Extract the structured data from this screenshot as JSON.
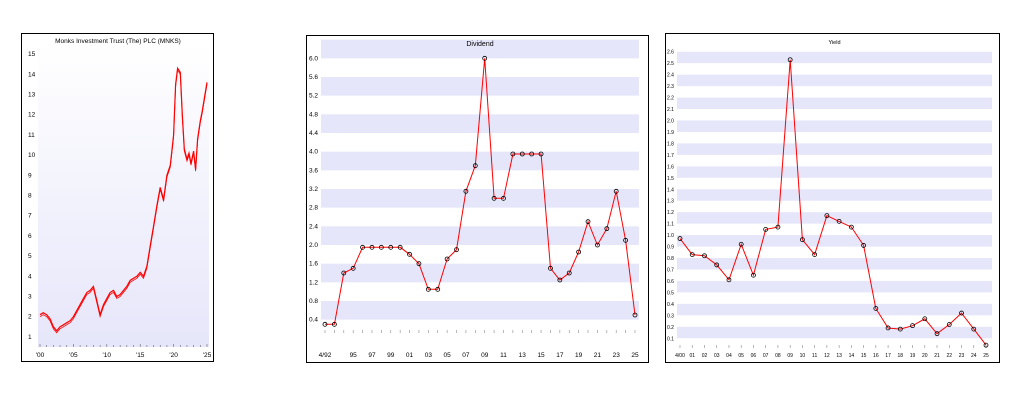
{
  "colors": {
    "line": "#ff0000",
    "band": "#e6e6fa",
    "axis": "#000000",
    "marker_stroke": "#000000"
  },
  "chart_data": [
    {
      "type": "line",
      "title": "Monks Investment Trust (The) PLC (MNKS)",
      "xlabel": "",
      "ylabel": "",
      "x_tick_labels": [
        "'00",
        "'05",
        "'10",
        "'15",
        "'20",
        "'25"
      ],
      "x_ticks": [
        2000,
        2005,
        2010,
        2015,
        2020,
        2025
      ],
      "y_tick_labels": [
        "1",
        "2",
        "3",
        "4",
        "5",
        "6",
        "7",
        "8",
        "9",
        "10",
        "11",
        "12",
        "13",
        "14",
        "15"
      ],
      "ylim": [
        0.5,
        15.5
      ],
      "xlim": [
        1999.7,
        2025.3
      ],
      "background": "vertical gradient white to lavender",
      "grid": false,
      "series": [
        {
          "x": [
            2000.0,
            2000.5,
            2001.0,
            2001.5,
            2002.0,
            2002.5,
            2003.0,
            2003.5,
            2004.0,
            2004.5,
            2005.0,
            2005.5,
            2006.0,
            2006.5,
            2007.0,
            2007.5,
            2008.0,
            2008.5,
            2009.0,
            2009.5,
            2010.0,
            2010.5,
            2011.0,
            2011.5,
            2012.0,
            2012.5,
            2013.0,
            2013.5,
            2014.0,
            2014.5,
            2015.0,
            2015.5,
            2016.0,
            2016.5,
            2017.0,
            2017.5,
            2018.0,
            2018.5,
            2019.0,
            2019.5,
            2020.0,
            2020.3,
            2020.6,
            2021.0,
            2021.3,
            2021.6,
            2022.0,
            2022.3,
            2022.6,
            2023.0,
            2023.3,
            2023.6,
            2024.0,
            2024.3,
            2024.6,
            2025.0
          ],
          "y": [
            2.1,
            2.2,
            2.1,
            1.9,
            1.5,
            1.3,
            1.5,
            1.6,
            1.7,
            1.8,
            2.0,
            2.3,
            2.6,
            2.9,
            3.2,
            3.3,
            3.5,
            2.8,
            2.1,
            2.6,
            2.9,
            3.2,
            3.3,
            3.0,
            3.1,
            3.3,
            3.5,
            3.8,
            3.9,
            4.0,
            4.2,
            4.0,
            4.5,
            5.5,
            6.5,
            7.5,
            8.4,
            7.8,
            9.0,
            9.5,
            11.0,
            13.5,
            14.3,
            14.1,
            12.0,
            10.3,
            9.8,
            10.1,
            9.6,
            10.2,
            9.3,
            10.8,
            11.7,
            12.2,
            12.8,
            13.6
          ]
        }
      ]
    },
    {
      "type": "line",
      "title": "Dividend",
      "xlabel": "",
      "ylabel": "",
      "categories": [
        "4/92",
        "93",
        "94",
        "95",
        "96",
        "97",
        "98",
        "99",
        "00",
        "01",
        "02",
        "03",
        "04",
        "05",
        "06",
        "07",
        "08",
        "09",
        "10",
        "11",
        "12",
        "13",
        "14",
        "15",
        "16",
        "17",
        "18",
        "19",
        "20",
        "21",
        "22",
        "23",
        "24",
        "25"
      ],
      "x_tick_labels": [
        "4/92",
        "95",
        "97",
        "99",
        "01",
        "03",
        "05",
        "07",
        "09",
        "11",
        "13",
        "15",
        "17",
        "19",
        "21",
        "23",
        "25"
      ],
      "y_tick_labels": [
        "0.4",
        "0.8",
        "1.2",
        "1.6",
        "2.0",
        "2.4",
        "2.8",
        "3.2",
        "3.6",
        "4.0",
        "4.4",
        "4.8",
        "5.2",
        "5.6",
        "6.0"
      ],
      "ylim": [
        0.2,
        6.2
      ],
      "grid": "alternating horizontal bands",
      "markers": true,
      "series": [
        {
          "values": [
            0.3,
            0.3,
            1.4,
            1.5,
            1.95,
            1.95,
            1.95,
            1.95,
            1.95,
            1.8,
            1.6,
            1.05,
            1.05,
            1.7,
            1.9,
            3.15,
            3.7,
            6.0,
            3.0,
            3.0,
            3.95,
            3.95,
            3.95,
            3.95,
            1.5,
            1.25,
            1.4,
            1.85,
            2.5,
            2.0,
            2.35,
            3.15,
            2.1,
            0.5
          ]
        }
      ]
    },
    {
      "type": "line",
      "title": "Yield",
      "xlabel": "",
      "ylabel": "",
      "categories": [
        "4/00",
        "01",
        "02",
        "03",
        "04",
        "05",
        "06",
        "07",
        "08",
        "09",
        "10",
        "11",
        "12",
        "13",
        "14",
        "15",
        "16",
        "17",
        "18",
        "19",
        "20",
        "21",
        "22",
        "23",
        "24",
        "25"
      ],
      "x_tick_labels": [
        "4/00",
        "01",
        "02",
        "03",
        "04",
        "05",
        "06",
        "07",
        "08",
        "09",
        "10",
        "11",
        "12",
        "13",
        "14",
        "15",
        "16",
        "17",
        "18",
        "19",
        "20",
        "21",
        "22",
        "23",
        "24",
        "25"
      ],
      "y_tick_labels": [
        "0.1",
        "0.2",
        "0.3",
        "0.4",
        "0.5",
        "0.6",
        "0.7",
        "0.8",
        "0.9",
        "1.0",
        "1.1",
        "1.2",
        "1.3",
        "1.4",
        "1.5",
        "1.6",
        "1.7",
        "1.8",
        "1.9",
        "2.0",
        "2.1",
        "2.2",
        "2.3",
        "2.4",
        "2.5",
        "2.6"
      ],
      "ylim": [
        0.05,
        2.65
      ],
      "grid": "alternating horizontal bands",
      "markers": true,
      "series": [
        {
          "values": [
            0.97,
            0.83,
            0.82,
            0.74,
            0.61,
            0.92,
            0.65,
            1.05,
            1.07,
            2.53,
            0.96,
            0.83,
            1.17,
            1.12,
            1.07,
            0.91,
            0.36,
            0.19,
            0.18,
            0.21,
            0.27,
            0.14,
            0.22,
            0.32,
            0.18,
            0.04
          ]
        }
      ]
    }
  ]
}
